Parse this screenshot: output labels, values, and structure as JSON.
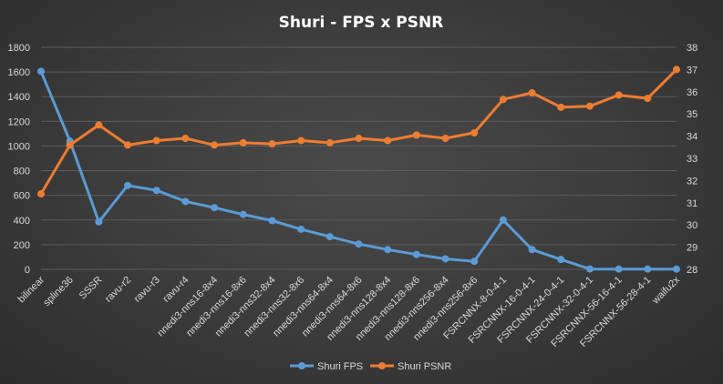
{
  "chart_data": {
    "type": "line",
    "title": "Shuri  - FPS x PSNR",
    "categories": [
      "bilinear",
      "spline36",
      "SSSR",
      "ravu-r2",
      "ravu-r3",
      "ravu-r4",
      "nnedi3-nns16-8x4",
      "nnedi3-nns16-8x6",
      "nnedi3-nns32-8x4",
      "nnedi3-nns32-8x6",
      "nnedi3-nns64-8x4",
      "nnedi3-nns64-8x6",
      "nnedi3-nns128-8x4",
      "nnedi3-nns128-8x6",
      "nnedi3-nns256-8x4",
      "nnedi3-nns256-8x6",
      "FSRCNNX-8-0-4-1",
      "FSRCNNX-16-0-4-1",
      "FSRCNNX-24-0-4-1",
      "FSRCNNX-32-0-4-1",
      "FSRCNNX-56-16-4-1",
      "FSRCNNX-56-28-4-1",
      "waifu2x"
    ],
    "series": [
      {
        "name": "Shuri FPS",
        "axis": "left",
        "color": "#5b9bd5",
        "values": [
          1605,
          1040,
          385,
          680,
          640,
          550,
          500,
          445,
          395,
          325,
          265,
          205,
          160,
          120,
          85,
          65,
          400,
          160,
          80,
          3,
          2,
          2,
          2
        ]
      },
      {
        "name": "Shuri PSNR",
        "axis": "right",
        "color": "#ed7d31",
        "values": [
          31.4,
          33.6,
          34.5,
          33.6,
          33.8,
          33.9,
          33.6,
          33.7,
          33.65,
          33.8,
          33.7,
          33.9,
          33.8,
          34.05,
          33.9,
          34.15,
          35.65,
          35.95,
          35.3,
          35.35,
          35.85,
          35.7,
          37.0
        ]
      }
    ],
    "y_left": {
      "min": 0,
      "max": 1800,
      "ticks": [
        "0",
        "200",
        "400",
        "600",
        "800",
        "1000",
        "1200",
        "1400",
        "1600",
        "1800"
      ]
    },
    "y_right": {
      "min": 28,
      "max": 38,
      "ticks": [
        "28",
        "29",
        "30",
        "31",
        "32",
        "33",
        "34",
        "35",
        "36",
        "37",
        "38"
      ]
    },
    "grid": true,
    "legend_position": "bottom"
  },
  "colors": {
    "grid": "#5c5c5c",
    "text": "#d9d9d9"
  }
}
